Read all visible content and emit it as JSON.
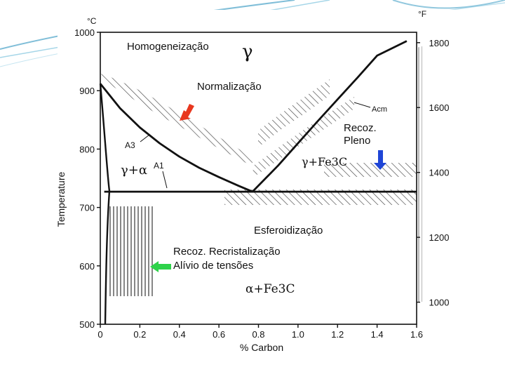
{
  "chart_data": {
    "type": "line",
    "title": "",
    "xlabel": "% Carbon",
    "ylabel": "Temperature",
    "y_unit_left": "°C",
    "y_unit_right": "°F",
    "xlim": [
      0,
      1.6
    ],
    "ylim": [
      500,
      1000
    ],
    "x_ticks": [
      "0",
      "0.2",
      "0.4",
      "0.6",
      "0.8",
      "1.0",
      "1.2",
      "1.4",
      "1.6"
    ],
    "y_ticks_left": [
      "500",
      "600",
      "700",
      "800",
      "900",
      "1000"
    ],
    "y_ticks_right": [
      "1000",
      "1200",
      "1400",
      "1600",
      "1800"
    ],
    "grid": false,
    "series": [
      {
        "name": "A3",
        "x": [
          0,
          0.1,
          0.2,
          0.3,
          0.4,
          0.5,
          0.6,
          0.7,
          0.77
        ],
        "y": [
          912,
          870,
          837,
          810,
          787,
          768,
          752,
          737,
          727
        ]
      },
      {
        "name": "Acm",
        "x": [
          0.77,
          0.9,
          1.0,
          1.1,
          1.2,
          1.3,
          1.4,
          1.55
        ],
        "y": [
          727,
          772,
          810,
          848,
          885,
          922,
          960,
          985
        ]
      },
      {
        "name": "A1",
        "x": [
          0.02,
          0.77,
          1.6
        ],
        "y": [
          727,
          727,
          727
        ]
      }
    ],
    "annotations": {
      "homogeneizacao": "Homogeneização",
      "gamma": "γ",
      "normalizacao": "Normalização",
      "acm": "Acm",
      "recoz_pleno_1": "Recoz.",
      "recoz_pleno_2": "Pleno",
      "a3": "A3",
      "gamma_alpha": "γ+α",
      "a1": "A1",
      "gamma_fe3c": "γ+Fe3C",
      "esferoidizacao": "Esferoidização",
      "recristalizacao": "Recoz. Recristalização",
      "alivio": "Alívio de tensões",
      "alpha_fe3c": "α+Fe3C"
    },
    "colors": {
      "red_arrow": "#e8371e",
      "blue_arrow": "#1f45d6",
      "green_arrow": "#2ed24a",
      "deco_blue": "#4aa3c8"
    }
  }
}
